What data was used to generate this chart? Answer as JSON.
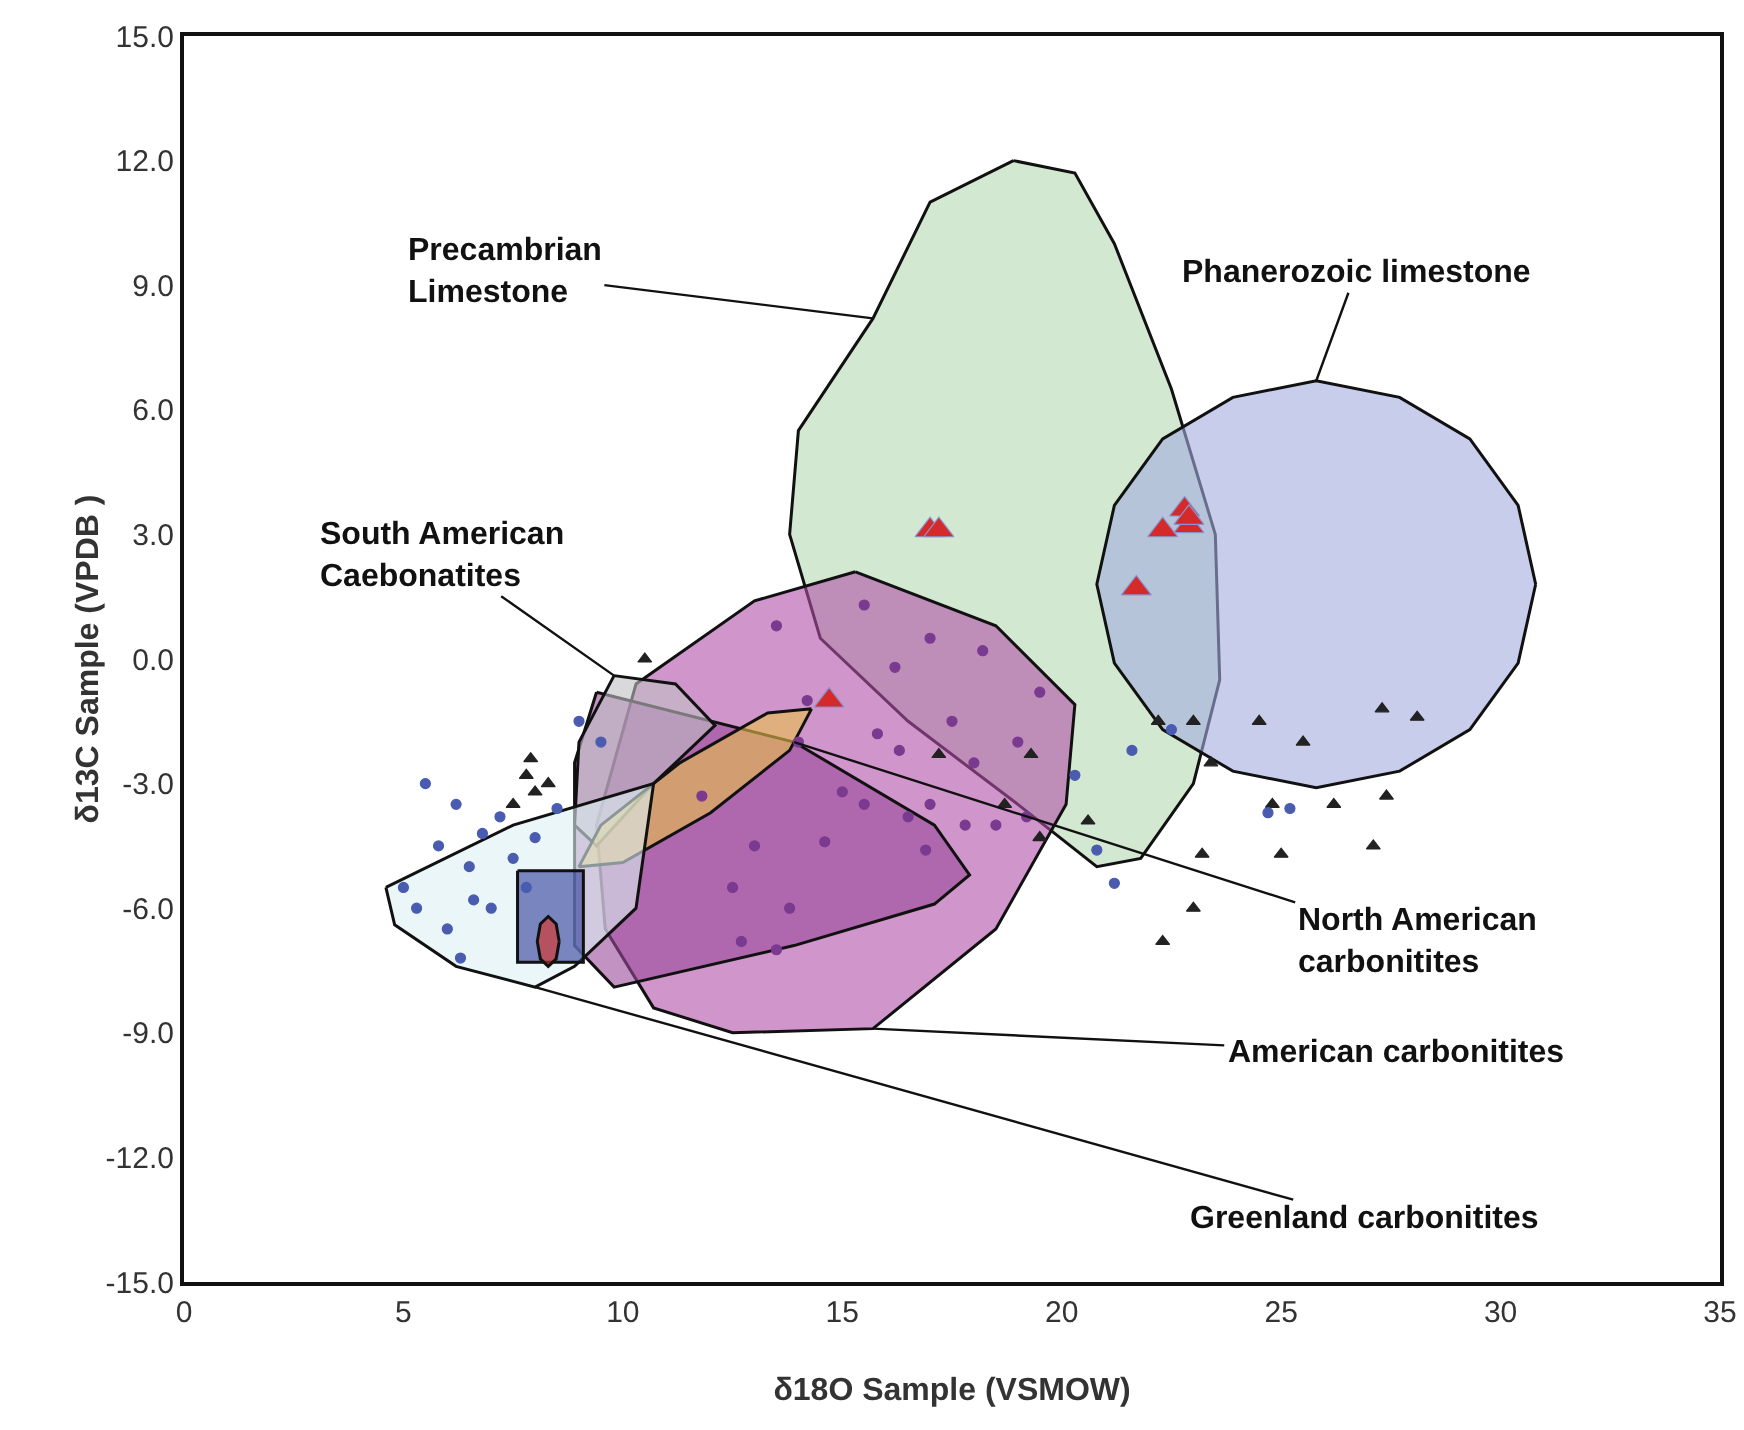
{
  "chart_data": {
    "type": "scatter",
    "xlabel": "δ18O Sample (VSMOW)",
    "ylabel": "δ13C Sample (VPDB )",
    "xlim": [
      0,
      35
    ],
    "xticks": [
      0,
      5,
      10,
      15,
      20,
      25,
      30,
      35
    ],
    "ylim": [
      -15,
      15
    ],
    "yticks": [
      {
        "value": -15,
        "label": "-15.0"
      },
      {
        "value": -12,
        "label": "-12.0"
      },
      {
        "value": -9,
        "label": "-9.0"
      },
      {
        "value": -6,
        "label": "-6.0"
      },
      {
        "value": -3,
        "label": "-3.0"
      },
      {
        "value": 0,
        "label": "0.0"
      },
      {
        "value": 3,
        "label": "3.0"
      },
      {
        "value": 6,
        "label": "6.0"
      },
      {
        "value": 9,
        "label": "9.0"
      },
      {
        "value": 12,
        "label": "12.0"
      },
      {
        "value": 15,
        "label": "15.0"
      }
    ],
    "series": [
      {
        "type": "area",
        "name": "Precambrian Limestone",
        "color": "#b5d9b0",
        "x": [
          18.9,
          17.0,
          15.7,
          14.0,
          13.8,
          14.5,
          16.5,
          19.0,
          20.8,
          21.8,
          23.0,
          23.6,
          23.5,
          22.5,
          21.2,
          20.3,
          18.9
        ],
        "values": [
          12.0,
          11.0,
          8.2,
          5.5,
          3.0,
          0.5,
          -1.5,
          -3.5,
          -5.0,
          -4.8,
          -3.0,
          -0.5,
          3.0,
          6.5,
          10.0,
          11.7,
          12.0
        ]
      },
      {
        "type": "area",
        "name": "Phanerozoic limestone",
        "color": "#a3acdf",
        "x": [
          30.8,
          30.4,
          29.3,
          27.7,
          25.8,
          23.9,
          22.3,
          21.2,
          20.8,
          21.2,
          22.3,
          23.9,
          25.8,
          27.7,
          29.3,
          30.4,
          30.8
        ],
        "values": [
          1.8,
          3.7,
          5.3,
          6.3,
          6.7,
          6.3,
          5.3,
          3.7,
          1.8,
          -0.1,
          -1.7,
          -2.7,
          -3.1,
          -2.7,
          -1.7,
          -0.1,
          1.8
        ]
      },
      {
        "type": "area",
        "name": "American carbonitites",
        "color": "#b050a8",
        "x": [
          15.3,
          18.5,
          20.3,
          20.1,
          18.5,
          15.7,
          12.5,
          10.7,
          9.6,
          9.4,
          10.3,
          13.0,
          15.3
        ],
        "values": [
          2.1,
          0.8,
          -1.1,
          -3.5,
          -6.5,
          -8.9,
          -9.0,
          -8.4,
          -6.5,
          -4.0,
          -0.6,
          1.4,
          2.1
        ]
      },
      {
        "type": "area",
        "name": "North American carbonitites",
        "color": "#9a4a9a",
        "x": [
          9.4,
          13.9,
          17.1,
          17.9,
          17.1,
          13.9,
          9.8,
          8.9,
          8.9,
          9.4
        ],
        "values": [
          -0.8,
          -2.0,
          -4.0,
          -5.2,
          -5.9,
          -6.9,
          -7.9,
          -6.9,
          -2.5,
          -0.8
        ]
      },
      {
        "type": "area",
        "name": "South American Caebonatites",
        "color": "#c0c0c4",
        "x": [
          9.8,
          11.2,
          12.1,
          10.7,
          9.4,
          8.9,
          9.0,
          9.8
        ],
        "values": [
          -0.4,
          -0.6,
          -1.6,
          -3.0,
          -4.5,
          -4.0,
          -2.0,
          -0.4
        ]
      },
      {
        "type": "area",
        "color": "#e9c24a",
        "x": [
          14.3,
          13.8,
          12.0,
          10.0,
          9.0,
          9.5,
          11.3,
          13.3,
          14.3
        ],
        "values": [
          -1.2,
          -2.2,
          -3.7,
          -4.9,
          -5.0,
          -4.0,
          -2.5,
          -1.3,
          -1.2
        ]
      },
      {
        "type": "area",
        "name": "Greenland carbonitites",
        "color": "#dcf0f2",
        "x": [
          4.6,
          7.5,
          10.7,
          10.3,
          8.9,
          8.0,
          6.2,
          4.8,
          4.6
        ],
        "values": [
          -5.5,
          -4.0,
          -3.0,
          -6.0,
          -7.4,
          -7.9,
          -7.4,
          -6.4,
          -5.5
        ]
      },
      {
        "type": "area",
        "color": "#2b3a9a",
        "x": [
          7.6,
          9.1,
          9.1,
          7.6,
          7.6
        ],
        "values": [
          -5.1,
          -5.1,
          -7.3,
          -7.3,
          -5.1
        ]
      },
      {
        "type": "area",
        "color": "#e03020",
        "x": [
          8.55,
          8.48,
          8.3,
          8.12,
          8.05,
          8.12,
          8.3,
          8.48,
          8.55
        ],
        "values": [
          -6.8,
          -6.38,
          -6.2,
          -6.38,
          -6.8,
          -7.22,
          -7.4,
          -7.22,
          -6.8
        ]
      },
      {
        "type": "scatter",
        "marker": "triangle",
        "color": "#d42a2a",
        "x": [
          17.0,
          17.2,
          14.7,
          22.3,
          22.8,
          22.9,
          22.9,
          21.7
        ],
        "values": [
          3.1,
          3.1,
          -1.0,
          3.1,
          3.6,
          3.2,
          3.4,
          1.7
        ]
      },
      {
        "type": "scatter",
        "marker": "triangle",
        "color": "#222222",
        "x": [
          7.8,
          8.0,
          7.5,
          8.3,
          7.9,
          10.5,
          19.3,
          18.7,
          19.5,
          20.6,
          22.2,
          23.0,
          24.5,
          25.5,
          23.4,
          24.8,
          26.2,
          23.2,
          25.0,
          27.4,
          27.1,
          22.3,
          23.0,
          17.2,
          27.3,
          28.1
        ],
        "values": [
          -2.8,
          -3.2,
          -3.5,
          -3.0,
          -2.4,
          0.0,
          -2.3,
          -3.5,
          -4.3,
          -3.9,
          -1.5,
          -1.5,
          -1.5,
          -2.0,
          -2.5,
          -3.5,
          -3.5,
          -4.7,
          -4.7,
          -3.3,
          -4.5,
          -6.8,
          -6.0,
          -2.3,
          -1.2,
          -1.4
        ]
      },
      {
        "type": "scatter",
        "marker": "circle",
        "color": "#4a5cb0",
        "x": [
          5.5,
          5.8,
          6.2,
          6.5,
          6.8,
          7.0,
          7.2,
          5.3,
          6.0,
          7.5,
          8.0,
          8.5,
          9.5,
          9.0,
          6.3,
          5.0,
          7.8,
          6.6,
          20.3,
          20.8,
          21.6,
          22.5,
          21.2,
          25.2,
          24.7
        ],
        "values": [
          -3.0,
          -4.5,
          -3.5,
          -5.0,
          -4.2,
          -6.0,
          -3.8,
          -6.0,
          -6.5,
          -4.8,
          -4.3,
          -3.6,
          -2.0,
          -1.5,
          -7.2,
          -5.5,
          -5.5,
          -5.8,
          -2.8,
          -4.6,
          -2.2,
          -1.7,
          -5.4,
          -3.6,
          -3.7
        ]
      },
      {
        "type": "scatter",
        "marker": "circle",
        "color": "#7a3a90",
        "x": [
          13.5,
          15.5,
          17.0,
          16.2,
          15.8,
          16.3,
          17.5,
          18.0,
          19.0,
          14.0,
          15.0,
          15.5,
          16.5,
          17.0,
          17.8,
          18.5,
          19.2,
          13.0,
          12.5,
          13.8,
          13.5,
          12.7,
          11.8,
          14.6,
          16.9,
          19.5,
          18.2,
          14.2
        ],
        "values": [
          0.8,
          1.3,
          0.5,
          -0.2,
          -1.8,
          -2.2,
          -1.5,
          -2.5,
          -2.0,
          -2.0,
          -3.2,
          -3.5,
          -3.8,
          -3.5,
          -4.0,
          -4.0,
          -3.8,
          -4.5,
          -5.5,
          -6.0,
          -7.0,
          -6.8,
          -3.3,
          -4.4,
          -4.6,
          -0.8,
          0.2,
          -1.0
        ]
      }
    ]
  }
}
